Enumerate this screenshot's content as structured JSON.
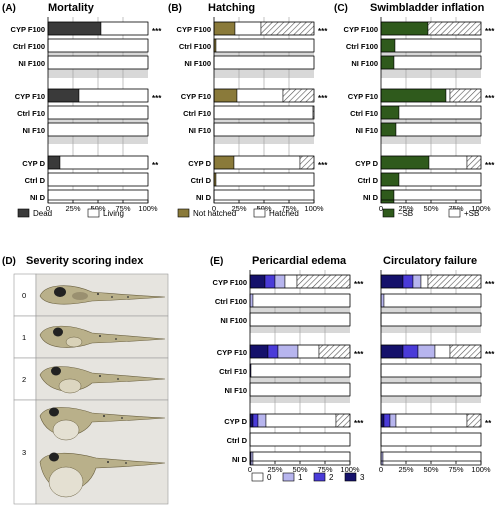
{
  "panel_labels": {
    "A": "(A)",
    "B": "(B)",
    "C": "(C)",
    "D": "(D)",
    "E": "(E)"
  },
  "fish_panel": {
    "title": "Severity scoring index",
    "scores": [
      "0",
      "1",
      "2",
      "3"
    ]
  },
  "colors": {
    "dead": "#3a3a3a",
    "not_hatched": "#8a7a3a",
    "no_sb": "#2f5a1c",
    "score1": "#b7b5ee",
    "score2": "#4a3bd8",
    "score3": "#15116b",
    "band": "#d8d8d8",
    "white": "#ffffff"
  },
  "chart_data": [
    {
      "id": "A",
      "type": "bar",
      "stacked": "horizontal-100",
      "title": "Mortality",
      "categories": [
        "CYP F100",
        "Ctrl F100",
        "NI F100",
        "CYP F10",
        "Ctrl F10",
        "NI F10",
        "CYP D",
        "Ctrl D",
        "NI D"
      ],
      "xticks": [
        "0",
        "25%",
        "50%",
        "75%",
        "100%"
      ],
      "xlim": [
        0,
        100
      ],
      "series": [
        {
          "name": "Dead",
          "color": "#3a3a3a",
          "values": [
            53,
            0,
            0,
            31,
            0,
            0,
            12,
            0,
            0
          ]
        },
        {
          "name": "Living",
          "color": "#ffffff",
          "values": [
            47,
            100,
            100,
            69,
            100,
            100,
            88,
            100,
            100
          ]
        }
      ],
      "hatched": [
        0,
        0,
        0,
        0,
        0,
        0,
        0,
        0,
        0
      ],
      "significance": [
        "***",
        "",
        "",
        "***",
        "",
        "",
        "**",
        "",
        ""
      ]
    },
    {
      "id": "B",
      "type": "bar",
      "stacked": "horizontal-100",
      "title": "Hatching",
      "categories": [
        "CYP F100",
        "Ctrl F100",
        "NI F100",
        "CYP F10",
        "Ctrl F10",
        "NI F10",
        "CYP D",
        "Ctrl D",
        "NI D"
      ],
      "xticks": [
        "0",
        "25%",
        "50%",
        "75%",
        "100%"
      ],
      "xlim": [
        0,
        100
      ],
      "series": [
        {
          "name": "Not hatched",
          "color": "#8a7a3a",
          "values": [
            21,
            2,
            0,
            23,
            0,
            0,
            20,
            2,
            0
          ]
        },
        {
          "name": "Hatched",
          "color": "#ffffff",
          "values": [
            26,
            98,
            100,
            46,
            99,
            100,
            66,
            98,
            100
          ]
        }
      ],
      "hatched": [
        53,
        0,
        0,
        31,
        1,
        0,
        14,
        0,
        0
      ],
      "significance": [
        "***",
        "",
        "",
        "***",
        "",
        "",
        "***",
        "",
        ""
      ]
    },
    {
      "id": "C",
      "type": "bar",
      "stacked": "horizontal-100",
      "title": "Swimbladder inflation",
      "categories": [
        "CYP F100",
        "Ctrl F100",
        "NI F100",
        "CYP F10",
        "Ctrl F10",
        "NI F10",
        "CYP D",
        "Ctrl D",
        "NI D"
      ],
      "xticks": [
        "0",
        "25%",
        "50%",
        "75%",
        "100%"
      ],
      "xlim": [
        0,
        100
      ],
      "series": [
        {
          "name": "–SB",
          "color": "#2f5a1c",
          "values": [
            47,
            14,
            13,
            65,
            18,
            15,
            48,
            18,
            13
          ]
        },
        {
          "name": "+SB",
          "color": "#ffffff",
          "values": [
            0,
            86,
            87,
            4,
            82,
            85,
            38,
            82,
            87
          ]
        }
      ],
      "hatched": [
        53,
        0,
        0,
        31,
        0,
        0,
        14,
        0,
        0
      ],
      "significance": [
        "***",
        "",
        "",
        "***",
        "",
        "",
        "***",
        "",
        ""
      ]
    },
    {
      "id": "E1",
      "type": "bar",
      "stacked": "horizontal-100",
      "title": "Pericardial edema",
      "categories": [
        "CYP F100",
        "Ctrl F100",
        "NI F100",
        "CYP F10",
        "Ctrl F10",
        "NI F10",
        "CYP D",
        "Ctrl D",
        "NI D"
      ],
      "xticks": [
        "0",
        "25%",
        "50%",
        "75%",
        "100%"
      ],
      "xlim": [
        0,
        100
      ],
      "series": [
        {
          "name": "3",
          "color": "#15116b",
          "values": [
            15,
            0,
            0,
            18,
            0,
            0,
            3,
            0,
            0
          ]
        },
        {
          "name": "2",
          "color": "#4a3bd8",
          "values": [
            10,
            0,
            0,
            10,
            1,
            0,
            5,
            0,
            1
          ]
        },
        {
          "name": "1",
          "color": "#b7b5ee",
          "values": [
            10,
            3,
            0,
            20,
            0,
            0,
            8,
            0,
            2
          ]
        },
        {
          "name": "0",
          "color": "#ffffff",
          "values": [
            12,
            97,
            100,
            21,
            99,
            100,
            70,
            100,
            97
          ]
        }
      ],
      "hatched": [
        53,
        0,
        0,
        31,
        0,
        0,
        14,
        0,
        0
      ],
      "significance": [
        "***",
        "",
        "",
        "***",
        "",
        "",
        "***",
        "",
        ""
      ]
    },
    {
      "id": "E2",
      "type": "bar",
      "stacked": "horizontal-100",
      "title": "Circulatory failure",
      "categories": [
        "CYP F100",
        "Ctrl F100",
        "NI F100",
        "CYP F10",
        "Ctrl F10",
        "NI F10",
        "CYP D",
        "Ctrl D",
        "NI D"
      ],
      "xticks": [
        "0",
        "25%",
        "50%",
        "75%",
        "100%"
      ],
      "xlim": [
        0,
        100
      ],
      "series": [
        {
          "name": "3",
          "color": "#15116b",
          "values": [
            22,
            0,
            0,
            22,
            0,
            0,
            3,
            0,
            0
          ]
        },
        {
          "name": "2",
          "color": "#4a3bd8",
          "values": [
            10,
            0,
            0,
            15,
            0,
            0,
            6,
            0,
            0
          ]
        },
        {
          "name": "1",
          "color": "#b7b5ee",
          "values": [
            8,
            3,
            0,
            17,
            0,
            0,
            6,
            0,
            2
          ]
        },
        {
          "name": "0",
          "color": "#ffffff",
          "values": [
            7,
            97,
            100,
            15,
            100,
            100,
            71,
            100,
            98
          ]
        }
      ],
      "hatched": [
        53,
        0,
        0,
        31,
        0,
        0,
        14,
        0,
        0
      ],
      "significance": [
        "***",
        "",
        "",
        "***",
        "",
        "",
        "**",
        "",
        ""
      ]
    }
  ],
  "legends": {
    "A": [
      {
        "label": "Dead",
        "color": "#3a3a3a"
      },
      {
        "label": "Living",
        "color": "#ffffff"
      }
    ],
    "B": [
      {
        "label": "Not hatched",
        "color": "#8a7a3a"
      },
      {
        "label": "Hatched",
        "color": "#ffffff"
      }
    ],
    "C": [
      {
        "label": "–SB",
        "color": "#2f5a1c"
      },
      {
        "label": "+SB",
        "color": "#ffffff"
      }
    ],
    "E": [
      {
        "label": "0",
        "color": "#ffffff"
      },
      {
        "label": "1",
        "color": "#b7b5ee"
      },
      {
        "label": "2",
        "color": "#4a3bd8"
      },
      {
        "label": "3",
        "color": "#15116b"
      }
    ]
  }
}
